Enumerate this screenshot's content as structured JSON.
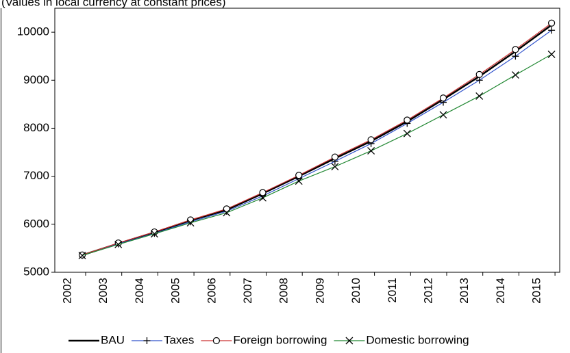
{
  "chart_data": {
    "type": "line",
    "title": "(Values in local currency at constant prices)",
    "categories": [
      "2002",
      "2003",
      "2004",
      "2005",
      "2006",
      "2007",
      "2008",
      "2009",
      "2010",
      "2011",
      "2012",
      "2013",
      "2014",
      "2015"
    ],
    "series": [
      {
        "name": "BAU",
        "color": "#000000",
        "marker": "none",
        "values": [
          5356,
          5600,
          5830,
          6080,
          6300,
          6640,
          7000,
          7370,
          7730,
          8140,
          8600,
          9080,
          9600,
          10150
        ]
      },
      {
        "name": "Taxes",
        "color": "#3355cc",
        "marker": "plus",
        "values": [
          5350,
          5590,
          5810,
          6050,
          6270,
          6590,
          6950,
          7310,
          7680,
          8100,
          8540,
          9000,
          9500,
          10040
        ]
      },
      {
        "name": "Foreign borrowing",
        "color": "#cc3333",
        "marker": "circle",
        "values": [
          5360,
          5610,
          5840,
          6090,
          6320,
          6660,
          7020,
          7400,
          7760,
          8170,
          8630,
          9120,
          9640,
          10190
        ]
      },
      {
        "name": "Domestic borrowing",
        "color": "#228833",
        "marker": "cross",
        "values": [
          5350,
          5580,
          5800,
          6030,
          6240,
          6550,
          6900,
          7200,
          7530,
          7890,
          8280,
          8670,
          9110,
          9540
        ]
      }
    ],
    "ylim": [
      5000,
      10500
    ],
    "yticks": [
      5000,
      6000,
      7000,
      8000,
      9000,
      10000
    ],
    "grid": false
  }
}
